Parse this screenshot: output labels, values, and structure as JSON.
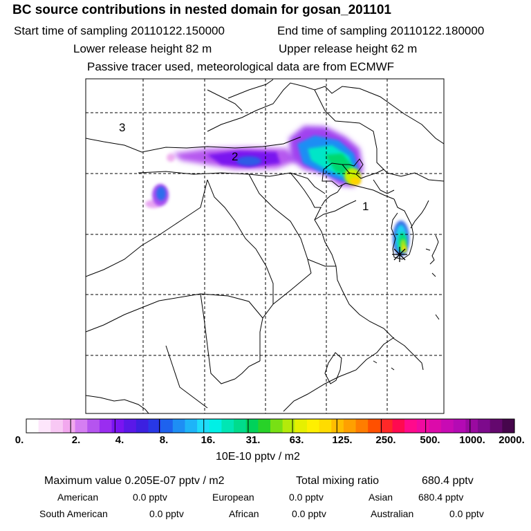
{
  "header": {
    "title": "BC  source contributions in nested domain for gosan_201101",
    "start_label": "Start time of sampling 20110122.150000",
    "end_label": "End time of sampling 20110122.180000",
    "lower_label": "Lower release height   82 m",
    "upper_label": "Upper release height   62 m",
    "tracer_note": "Passive tracer used, meteorological data are from ECMWF"
  },
  "map": {
    "region_labels": [
      "1",
      "2",
      "3"
    ],
    "receptor_marker": "asterisk-icon"
  },
  "colorbar": {
    "colors": [
      "#ffffff",
      "#fde6fb",
      "#f8c8f4",
      "#f2a8ee",
      "#d57ef2",
      "#b554ef",
      "#9a2df0",
      "#7a14f1",
      "#5a18e8",
      "#3c20e0",
      "#2838e6",
      "#1e62ee",
      "#1e8ef4",
      "#1eb4f8",
      "#1edcfa",
      "#00f0e6",
      "#00e6b4",
      "#00dc8c",
      "#00d25a",
      "#28d228",
      "#78e014",
      "#b4ea0a",
      "#e6f000",
      "#fff000",
      "#ffdc00",
      "#ffbe00",
      "#ffa000",
      "#ff7d00",
      "#ff5000",
      "#ff2828",
      "#ff0a50",
      "#ff0a8c",
      "#f00aa0",
      "#dc0aaa",
      "#c80ab4",
      "#b40ab4",
      "#9a0aa0",
      "#7d0a8c",
      "#64086e",
      "#46064c"
    ],
    "tick_labels": [
      "0.",
      "2.",
      "4.",
      "8.",
      "16.",
      "31.",
      "63.",
      "125.",
      "250.",
      "500.",
      "1000.",
      "2000."
    ],
    "units": "10E-10 pptv / m2"
  },
  "stats": {
    "max_label": "Maximum value  0.205E-07 pptv / m2",
    "total_label": "Total mixing ratio",
    "total_value": "680.4 pptv",
    "american_label": "American",
    "american_value": "0.0 pptv",
    "european_label": "European",
    "european_value": "0.0 pptv",
    "asian_label": "Asian",
    "asian_value": "680.4 pptv",
    "south_american_label": "South American",
    "south_american_value": "0.0 pptv",
    "african_label": "African",
    "african_value": "0.0 pptv",
    "australian_label": "Australian",
    "australian_value": "0.0 pptv"
  }
}
